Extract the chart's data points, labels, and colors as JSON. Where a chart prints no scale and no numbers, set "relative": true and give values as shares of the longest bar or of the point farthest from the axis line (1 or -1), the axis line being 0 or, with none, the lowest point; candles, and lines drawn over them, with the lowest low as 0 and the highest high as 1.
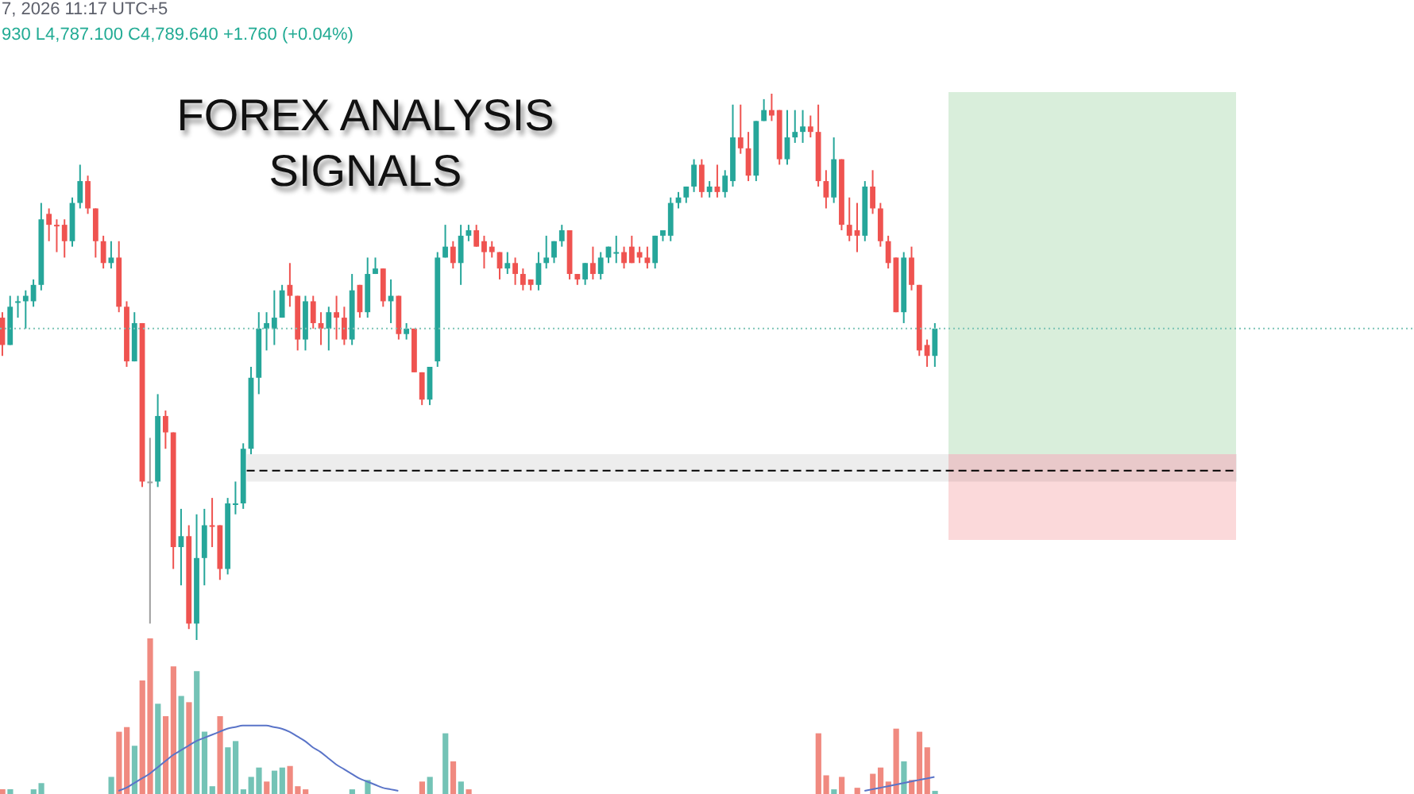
{
  "chart_data": [
    {
      "type": "candlestick",
      "title": "FOREX ANALYSIS SIGNALS",
      "annotations": [
        "7, 2026 11:17 UTC+5",
        "930 L4,787.100 C4,789.640 +1.760 (+0.04%)"
      ],
      "relative": true,
      "tick_labels": false,
      "categories": [
        null,
        null,
        null,
        null,
        null,
        null,
        null,
        null,
        null,
        null,
        null,
        null,
        null,
        null,
        null,
        null,
        null,
        null,
        null,
        null,
        null,
        null,
        null,
        null,
        null,
        null,
        null,
        null,
        null,
        null,
        null,
        null,
        null,
        null,
        null,
        null,
        null,
        null,
        null,
        null,
        null,
        null,
        null,
        null,
        null,
        null,
        null,
        null,
        null,
        null,
        null,
        null,
        null,
        null,
        null,
        null,
        null,
        null,
        null,
        null,
        null,
        null,
        null,
        null,
        null,
        null,
        null,
        null,
        null,
        null,
        null,
        null,
        null,
        null,
        null,
        null,
        null,
        null,
        null,
        null,
        null,
        null,
        null,
        null,
        null,
        null,
        null,
        null,
        null,
        null,
        null,
        null,
        null,
        null,
        null,
        null,
        null,
        null,
        null,
        null,
        null,
        null,
        null,
        null,
        null,
        null,
        null,
        null,
        null,
        null,
        null,
        null,
        null,
        null,
        null,
        null,
        null,
        null,
        null,
        null,
        null
      ],
      "ohlc": [
        [
          0.59,
          0.6,
          0.52,
          0.54
        ],
        [
          0.54,
          0.63,
          0.54,
          0.61
        ],
        [
          0.62,
          0.63,
          0.59,
          0.62
        ],
        [
          0.62,
          0.64,
          0.57,
          0.63
        ],
        [
          0.62,
          0.66,
          0.61,
          0.65
        ],
        [
          0.65,
          0.8,
          0.64,
          0.77
        ],
        [
          0.78,
          0.79,
          0.73,
          0.76
        ],
        [
          0.76,
          0.77,
          0.71,
          0.76
        ],
        [
          0.76,
          0.77,
          0.7,
          0.73
        ],
        [
          0.73,
          0.81,
          0.72,
          0.8
        ],
        [
          0.8,
          0.87,
          0.79,
          0.84
        ],
        [
          0.84,
          0.85,
          0.78,
          0.79
        ],
        [
          0.79,
          0.79,
          0.7,
          0.73
        ],
        [
          0.73,
          0.74,
          0.68,
          0.69
        ],
        [
          0.69,
          0.73,
          0.68,
          0.7
        ],
        [
          0.7,
          0.73,
          0.6,
          0.61
        ],
        [
          0.61,
          0.62,
          0.5,
          0.51
        ],
        [
          0.51,
          0.6,
          0.51,
          0.58
        ],
        [
          0.58,
          0.58,
          0.28,
          0.29
        ],
        [
          0.29,
          0.37,
          0.03,
          0.29
        ],
        [
          0.29,
          0.45,
          0.28,
          0.41
        ],
        [
          0.41,
          0.42,
          0.35,
          0.38
        ],
        [
          0.38,
          0.38,
          0.13,
          0.17
        ],
        [
          0.17,
          0.24,
          0.1,
          0.19
        ],
        [
          0.19,
          0.21,
          0.02,
          0.03
        ],
        [
          0.03,
          0.23,
          0.0,
          0.15
        ],
        [
          0.15,
          0.24,
          0.1,
          0.21
        ],
        [
          0.21,
          0.26,
          0.17,
          0.21
        ],
        [
          0.21,
          0.21,
          0.11,
          0.13
        ],
        [
          0.13,
          0.26,
          0.12,
          0.25
        ],
        [
          0.25,
          0.29,
          0.23,
          0.25
        ],
        [
          0.25,
          0.36,
          0.24,
          0.35
        ],
        [
          0.35,
          0.5,
          0.34,
          0.48
        ],
        [
          0.48,
          0.6,
          0.45,
          0.57
        ],
        [
          0.57,
          0.6,
          0.53,
          0.58
        ],
        [
          0.57,
          0.64,
          0.54,
          0.59
        ],
        [
          0.59,
          0.65,
          0.59,
          0.64
        ],
        [
          0.65,
          0.69,
          0.61,
          0.63
        ],
        [
          0.63,
          0.63,
          0.53,
          0.55
        ],
        [
          0.55,
          0.63,
          0.53,
          0.62
        ],
        [
          0.62,
          0.63,
          0.57,
          0.58
        ],
        [
          0.58,
          0.6,
          0.54,
          0.57
        ],
        [
          0.57,
          0.61,
          0.53,
          0.6
        ],
        [
          0.6,
          0.63,
          0.55,
          0.59
        ],
        [
          0.59,
          0.61,
          0.54,
          0.55
        ],
        [
          0.55,
          0.67,
          0.54,
          0.64
        ],
        [
          0.65,
          0.65,
          0.59,
          0.6
        ],
        [
          0.6,
          0.7,
          0.59,
          0.67
        ],
        [
          0.67,
          0.7,
          0.67,
          0.68
        ],
        [
          0.68,
          0.68,
          0.61,
          0.62
        ],
        [
          0.62,
          0.66,
          0.58,
          0.63
        ],
        [
          0.63,
          0.63,
          0.55,
          0.56
        ],
        [
          0.56,
          0.58,
          0.55,
          0.57
        ],
        [
          0.57,
          0.57,
          0.49,
          0.49
        ],
        [
          0.49,
          0.49,
          0.43,
          0.44
        ],
        [
          0.44,
          0.5,
          0.43,
          0.5
        ],
        [
          0.51,
          0.71,
          0.5,
          0.7
        ],
        [
          0.7,
          0.76,
          0.7,
          0.72
        ],
        [
          0.72,
          0.73,
          0.68,
          0.69
        ],
        [
          0.69,
          0.76,
          0.65,
          0.74
        ],
        [
          0.74,
          0.76,
          0.73,
          0.75
        ],
        [
          0.75,
          0.76,
          0.72,
          0.72
        ],
        [
          0.73,
          0.74,
          0.68,
          0.71
        ],
        [
          0.72,
          0.73,
          0.7,
          0.71
        ],
        [
          0.71,
          0.71,
          0.66,
          0.68
        ],
        [
          0.68,
          0.71,
          0.67,
          0.69
        ],
        [
          0.69,
          0.7,
          0.65,
          0.67
        ],
        [
          0.67,
          0.68,
          0.64,
          0.65
        ],
        [
          0.66,
          0.66,
          0.64,
          0.65
        ],
        [
          0.65,
          0.71,
          0.64,
          0.69
        ],
        [
          0.69,
          0.74,
          0.68,
          0.7
        ],
        [
          0.7,
          0.73,
          0.69,
          0.73
        ],
        [
          0.73,
          0.76,
          0.72,
          0.75
        ],
        [
          0.75,
          0.75,
          0.66,
          0.67
        ],
        [
          0.67,
          0.67,
          0.65,
          0.66
        ],
        [
          0.66,
          0.69,
          0.65,
          0.69
        ],
        [
          0.69,
          0.72,
          0.66,
          0.67
        ],
        [
          0.67,
          0.71,
          0.66,
          0.7
        ],
        [
          0.7,
          0.72,
          0.69,
          0.72
        ],
        [
          0.71,
          0.74,
          0.69,
          0.71
        ],
        [
          0.71,
          0.72,
          0.68,
          0.69
        ],
        [
          0.72,
          0.74,
          0.69,
          0.69
        ],
        [
          0.71,
          0.72,
          0.69,
          0.7
        ],
        [
          0.7,
          0.72,
          0.68,
          0.69
        ],
        [
          0.69,
          0.74,
          0.68,
          0.74
        ],
        [
          0.74,
          0.75,
          0.73,
          0.75
        ],
        [
          0.74,
          0.81,
          0.73,
          0.8
        ],
        [
          0.8,
          0.82,
          0.79,
          0.81
        ],
        [
          0.81,
          0.83,
          0.8,
          0.83
        ],
        [
          0.83,
          0.88,
          0.82,
          0.87
        ],
        [
          0.87,
          0.88,
          0.81,
          0.82
        ],
        [
          0.82,
          0.84,
          0.81,
          0.83
        ],
        [
          0.83,
          0.87,
          0.81,
          0.82
        ],
        [
          0.82,
          0.86,
          0.81,
          0.85
        ],
        [
          0.84,
          0.98,
          0.83,
          0.92
        ],
        [
          0.92,
          0.98,
          0.89,
          0.9
        ],
        [
          0.9,
          0.93,
          0.84,
          0.85
        ],
        [
          0.85,
          0.95,
          0.84,
          0.95
        ],
        [
          0.95,
          0.99,
          0.95,
          0.97
        ],
        [
          0.97,
          1.0,
          0.95,
          0.96
        ],
        [
          0.97,
          0.97,
          0.87,
          0.88
        ],
        [
          0.88,
          0.97,
          0.87,
          0.92
        ],
        [
          0.92,
          0.97,
          0.91,
          0.93
        ],
        [
          0.93,
          0.97,
          0.91,
          0.94
        ],
        [
          0.94,
          0.96,
          0.92,
          0.93
        ],
        [
          0.93,
          0.98,
          0.83,
          0.84
        ],
        [
          0.84,
          0.86,
          0.79,
          0.81
        ],
        [
          0.81,
          0.92,
          0.8,
          0.88
        ],
        [
          0.88,
          0.88,
          0.75,
          0.76
        ],
        [
          0.76,
          0.81,
          0.73,
          0.74
        ],
        [
          0.75,
          0.8,
          0.71,
          0.74
        ],
        [
          0.74,
          0.84,
          0.73,
          0.83
        ],
        [
          0.83,
          0.86,
          0.78,
          0.79
        ],
        [
          0.79,
          0.8,
          0.72,
          0.73
        ],
        [
          0.73,
          0.74,
          0.68,
          0.69
        ],
        [
          0.7,
          0.7,
          0.6,
          0.6
        ],
        [
          0.6,
          0.71,
          0.58,
          0.7
        ],
        [
          0.7,
          0.72,
          0.64,
          0.65
        ],
        [
          0.65,
          0.65,
          0.52,
          0.53
        ],
        [
          0.54,
          0.55,
          0.5,
          0.52
        ],
        [
          0.52,
          0.58,
          0.5,
          0.57
        ]
      ],
      "colors": [
        "#ef5350",
        "#26a69a",
        "#26a69a",
        "#26a69a",
        "#26a69a",
        "#26a69a",
        "#ef5350",
        "#ef5350",
        "#ef5350",
        "#26a69a",
        "#26a69a",
        "#ef5350",
        "#ef5350",
        "#ef5350",
        "#26a69a",
        "#ef5350",
        "#ef5350",
        "#26a69a",
        "#ef5350",
        "#9e9e9e",
        "#26a69a",
        "#ef5350",
        "#ef5350",
        "#26a69a",
        "#ef5350",
        "#26a69a",
        "#26a69a",
        "#ef5350",
        "#ef5350",
        "#26a69a",
        "#26a69a",
        "#26a69a",
        "#26a69a",
        "#26a69a",
        "#26a69a",
        "#26a69a",
        "#26a69a",
        "#ef5350",
        "#ef5350",
        "#26a69a",
        "#ef5350",
        "#ef5350",
        "#26a69a",
        "#ef5350",
        "#ef5350",
        "#26a69a",
        "#ef5350",
        "#26a69a",
        "#26a69a",
        "#ef5350",
        "#26a69a",
        "#ef5350",
        "#26a69a",
        "#ef5350",
        "#ef5350",
        "#26a69a",
        "#26a69a",
        "#26a69a",
        "#ef5350",
        "#26a69a",
        "#26a69a",
        "#ef5350",
        "#ef5350",
        "#ef5350",
        "#ef5350",
        "#26a69a",
        "#ef5350",
        "#ef5350",
        "#ef5350",
        "#26a69a",
        "#26a69a",
        "#26a69a",
        "#26a69a",
        "#ef5350",
        "#ef5350",
        "#26a69a",
        "#ef5350",
        "#26a69a",
        "#26a69a",
        "#26a69a",
        "#ef5350",
        "#ef5350",
        "#ef5350",
        "#ef5350",
        "#26a69a",
        "#26a69a",
        "#26a69a",
        "#26a69a",
        "#26a69a",
        "#26a69a",
        "#ef5350",
        "#26a69a",
        "#ef5350",
        "#26a69a",
        "#26a69a",
        "#ef5350",
        "#ef5350",
        "#26a69a",
        "#26a69a",
        "#ef5350",
        "#ef5350",
        "#26a69a",
        "#26a69a",
        "#26a69a",
        "#ef5350",
        "#ef5350",
        "#ef5350",
        "#26a69a",
        "#ef5350",
        "#ef5350",
        "#ef5350",
        "#26a69a",
        "#ef5350",
        "#ef5350",
        "#ef5350",
        "#ef5350",
        "#26a69a",
        "#ef5350",
        "#ef5350",
        "#ef5350",
        "#26a69a"
      ],
      "ref_lines": [
        {
          "axis": "y",
          "value": 0.57,
          "color": "#7cc4b6",
          "line_style": "dotted"
        },
        {
          "axis": "y",
          "value": 0.31,
          "color": "#000000",
          "line_style": "dashed"
        }
      ],
      "bands": [
        {
          "axis": "y",
          "from": 0.29,
          "to": 0.34,
          "color": "#ededed"
        }
      ]
    },
    {
      "type": "bar",
      "relative": true,
      "tick_labels": false,
      "categories": [
        null,
        null,
        null,
        null,
        null,
        null,
        null,
        null,
        null,
        null,
        null,
        null,
        null,
        null,
        null,
        null,
        null,
        null,
        null,
        null,
        null,
        null,
        null,
        null,
        null,
        null,
        null,
        null,
        null,
        null,
        null,
        null,
        null,
        null,
        null,
        null,
        null,
        null,
        null,
        null,
        null,
        null,
        null,
        null,
        null,
        null,
        null,
        null,
        null,
        null,
        null,
        null,
        null,
        null,
        null,
        null,
        null,
        null,
        null,
        null,
        null,
        null,
        null,
        null,
        null,
        null,
        null,
        null,
        null,
        null,
        null,
        null,
        null,
        null,
        null,
        null,
        null,
        null,
        null,
        null,
        null,
        null,
        null,
        null,
        null,
        null,
        null,
        null,
        null,
        null,
        null,
        null,
        null,
        null,
        null,
        null,
        null,
        null,
        null,
        null,
        null,
        null,
        null,
        null,
        null,
        null,
        null,
        null,
        null,
        null,
        null,
        null,
        null,
        null,
        null,
        null,
        null,
        null,
        null,
        null,
        null
      ],
      "series": [
        {
          "type": "bar",
          "values": [
            0.03,
            0.03,
            null,
            null,
            0.03,
            0.07,
            null,
            null,
            null,
            null,
            null,
            null,
            null,
            null,
            0.11,
            0.4,
            0.43,
            0.31,
            0.73,
            1.0,
            0.58,
            0.5,
            0.82,
            0.63,
            0.59,
            0.79,
            0.4,
            0.05,
            0.5,
            0.3,
            0.34,
            0.03,
            0.11,
            0.17,
            0.08,
            0.15,
            0.17,
            0.18,
            0.05,
            0.03,
            null,
            null,
            null,
            null,
            null,
            0.03,
            null,
            0.09,
            null,
            null,
            null,
            null,
            null,
            null,
            0.08,
            0.11,
            null,
            0.39,
            0.21,
            0.08,
            0.03,
            null,
            null,
            null,
            null,
            null,
            null,
            null,
            null,
            null,
            null,
            null,
            null,
            null,
            null,
            null,
            null,
            null,
            null,
            null,
            null,
            null,
            null,
            null,
            null,
            null,
            null,
            null,
            null,
            null,
            null,
            null,
            null,
            null,
            null,
            null,
            null,
            null,
            null,
            null,
            null,
            null,
            null,
            null,
            null,
            0.39,
            0.12,
            0.03,
            0.11,
            null,
            0.04,
            null,
            0.13,
            0.17,
            0.08,
            0.42,
            0.21,
            0.09,
            0.4,
            0.3,
            0.02
          ],
          "colors": [
            "#f08a80",
            "#74c3b6",
            null,
            null,
            "#74c3b6",
            "#74c3b6",
            null,
            null,
            null,
            null,
            null,
            null,
            null,
            null,
            "#74c3b6",
            "#f08a80",
            "#f08a80",
            "#74c3b6",
            "#f08a80",
            "#f08a80",
            "#74c3b6",
            "#f08a80",
            "#f08a80",
            "#74c3b6",
            "#f08a80",
            "#74c3b6",
            "#74c3b6",
            "#74c3b6",
            "#f08a80",
            "#74c3b6",
            "#74c3b6",
            "#74c3b6",
            "#74c3b6",
            "#74c3b6",
            "#f08a80",
            "#74c3b6",
            "#74c3b6",
            "#f08a80",
            "#f08a80",
            "#f08a80",
            null,
            null,
            null,
            null,
            null,
            "#74c3b6",
            null,
            "#74c3b6",
            null,
            null,
            null,
            null,
            null,
            null,
            "#f08a80",
            "#74c3b6",
            null,
            "#74c3b6",
            "#f08a80",
            "#74c3b6",
            "#f08a80",
            null,
            null,
            null,
            null,
            null,
            null,
            null,
            null,
            null,
            null,
            null,
            null,
            null,
            null,
            null,
            null,
            null,
            null,
            null,
            null,
            null,
            null,
            null,
            null,
            null,
            null,
            null,
            null,
            null,
            null,
            null,
            null,
            null,
            null,
            null,
            null,
            null,
            null,
            null,
            null,
            null,
            null,
            null,
            null,
            "#f08a80",
            "#f08a80",
            "#74c3b6",
            "#f08a80",
            null,
            "#f08a80",
            null,
            "#f08a80",
            "#f08a80",
            "#f08a80",
            "#f08a80",
            "#74c3b6",
            "#f08a80",
            "#f08a80",
            "#f08a80",
            "#74c3b6"
          ]
        },
        {
          "type": "line",
          "color": "#5a74c8",
          "values": [
            null,
            null,
            null,
            null,
            null,
            null,
            null,
            null,
            null,
            null,
            null,
            null,
            null,
            null,
            null,
            0.02,
            0.04,
            0.07,
            0.1,
            0.13,
            0.17,
            0.21,
            0.25,
            0.28,
            0.31,
            0.34,
            0.36,
            0.38,
            0.4,
            0.42,
            0.43,
            0.44,
            0.44,
            0.44,
            0.44,
            0.43,
            0.42,
            0.4,
            0.37,
            0.34,
            0.3,
            0.27,
            0.23,
            0.19,
            0.16,
            0.13,
            0.1,
            0.08,
            0.06,
            0.04,
            0.03,
            0.02,
            null,
            null,
            null,
            null,
            null,
            null,
            null,
            null,
            null,
            null,
            null,
            null,
            null,
            null,
            null,
            null,
            null,
            null,
            null,
            null,
            null,
            null,
            null,
            null,
            null,
            null,
            null,
            null,
            null,
            null,
            null,
            null,
            null,
            null,
            null,
            null,
            null,
            null,
            null,
            null,
            null,
            null,
            null,
            null,
            null,
            null,
            null,
            null,
            null,
            null,
            null,
            null,
            null,
            null,
            null,
            null,
            null,
            null,
            null,
            0.02,
            0.03,
            0.04,
            0.05,
            0.06,
            0.07,
            0.08,
            0.09,
            0.1,
            0.11
          ]
        }
      ]
    }
  ]
}
